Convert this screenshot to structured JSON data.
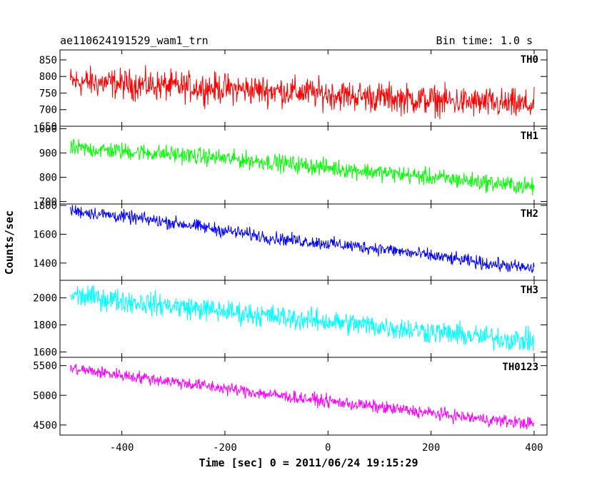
{
  "header": {
    "title": "ae110624191529_wam1_trn",
    "bin_time": "Bin time: 1.0 s"
  },
  "axes": {
    "xlabel": "Time [sec] 0 = 2011/06/24 19:15:29",
    "ylabel": "Counts/sec"
  },
  "chart_data": {
    "type": "line",
    "title": "ae110624191529_wam1_trn",
    "subtitle": "Bin time: 1.0 s",
    "xlabel": "Time [sec] 0 = 2011/06/24 19:15:29",
    "ylabel": "Counts/sec",
    "xlim": [
      -520,
      425
    ],
    "x_ticks": [
      -400,
      -200,
      0,
      200,
      400
    ],
    "x_range_data": [
      -500,
      400
    ],
    "panels": [
      {
        "name": "TH0",
        "color": "#ff0000",
        "ylim": [
          650,
          880
        ],
        "y_ticks": [
          650,
          700,
          750,
          800,
          850
        ],
        "trend": {
          "x": [
            -500,
            -300,
            -100,
            100,
            300,
            400
          ],
          "y": [
            785,
            770,
            757,
            737,
            720,
            712
          ]
        },
        "noise_amplitude": 32
      },
      {
        "name": "TH1",
        "color": "#00ff00",
        "ylim": [
          690,
          1010
        ],
        "y_ticks": [
          700,
          800,
          900,
          1000
        ],
        "trend": {
          "x": [
            -500,
            -300,
            -100,
            100,
            300,
            400
          ],
          "y": [
            920,
            895,
            860,
            820,
            780,
            760
          ]
        },
        "noise_amplitude": 25
      },
      {
        "name": "TH2",
        "color": "#0000ff",
        "ylim": [
          1280,
          1810
        ],
        "y_ticks": [
          1400,
          1600,
          1800
        ],
        "trend": {
          "x": [
            -500,
            -300,
            -100,
            100,
            300,
            400
          ],
          "y": [
            1765,
            1680,
            1570,
            1500,
            1400,
            1360
          ]
        },
        "noise_amplitude": 32
      },
      {
        "name": "TH3",
        "color": "#00ffff",
        "ylim": [
          1560,
          2130
        ],
        "y_ticks": [
          1600,
          1800,
          2000
        ],
        "trend": {
          "x": [
            -500,
            -300,
            -100,
            100,
            300,
            400
          ],
          "y": [
            2020,
            1940,
            1860,
            1790,
            1710,
            1680
          ]
        },
        "noise_amplitude": 60
      },
      {
        "name": "TH0123",
        "color": "#ff00ff",
        "ylim": [
          4330,
          5640
        ],
        "y_ticks": [
          4500,
          5000,
          5500
        ],
        "trend": {
          "x": [
            -500,
            -300,
            -100,
            100,
            300,
            400
          ],
          "y": [
            5450,
            5230,
            5000,
            4800,
            4600,
            4520
          ]
        },
        "noise_amplitude": 75
      }
    ],
    "grid": false,
    "legend": "per-panel label top-right"
  }
}
